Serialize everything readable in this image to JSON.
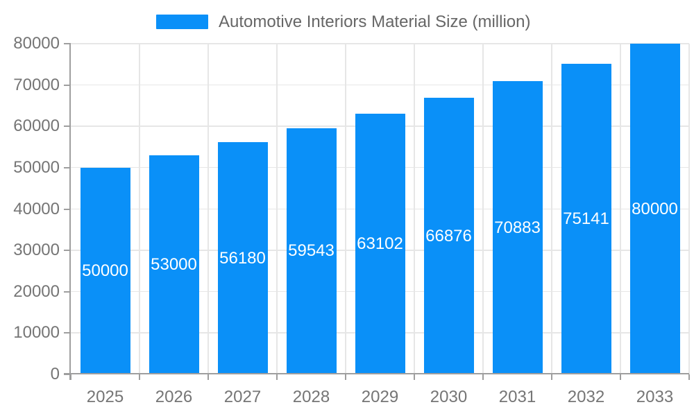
{
  "legend": {
    "label": "Automotive Interiors Material Size (million)"
  },
  "chart_data": {
    "type": "bar",
    "title": "Automotive Interiors Material Size (million)",
    "categories": [
      "2025",
      "2026",
      "2027",
      "2028",
      "2029",
      "2030",
      "2031",
      "2032",
      "2033"
    ],
    "values": [
      50000,
      53000,
      56180,
      59543,
      63102,
      66876,
      70883,
      75141,
      80000
    ],
    "xlabel": "",
    "ylabel": "",
    "ylim": [
      0,
      80000
    ],
    "ytick_step": 10000,
    "ytick_labels": [
      "0",
      "10000",
      "20000",
      "30000",
      "40000",
      "50000",
      "60000",
      "70000",
      "80000"
    ],
    "grid": true,
    "legend_position": "top",
    "bar_labels_inside": true,
    "colors": {
      "bar": "#0a90f8",
      "bar_label": "#ffffff",
      "axis_text": "#757575",
      "legend_text": "#666666",
      "gridline": "#e6e6e6",
      "axis_line": "#9e9e9e",
      "background": "#ffffff"
    }
  }
}
